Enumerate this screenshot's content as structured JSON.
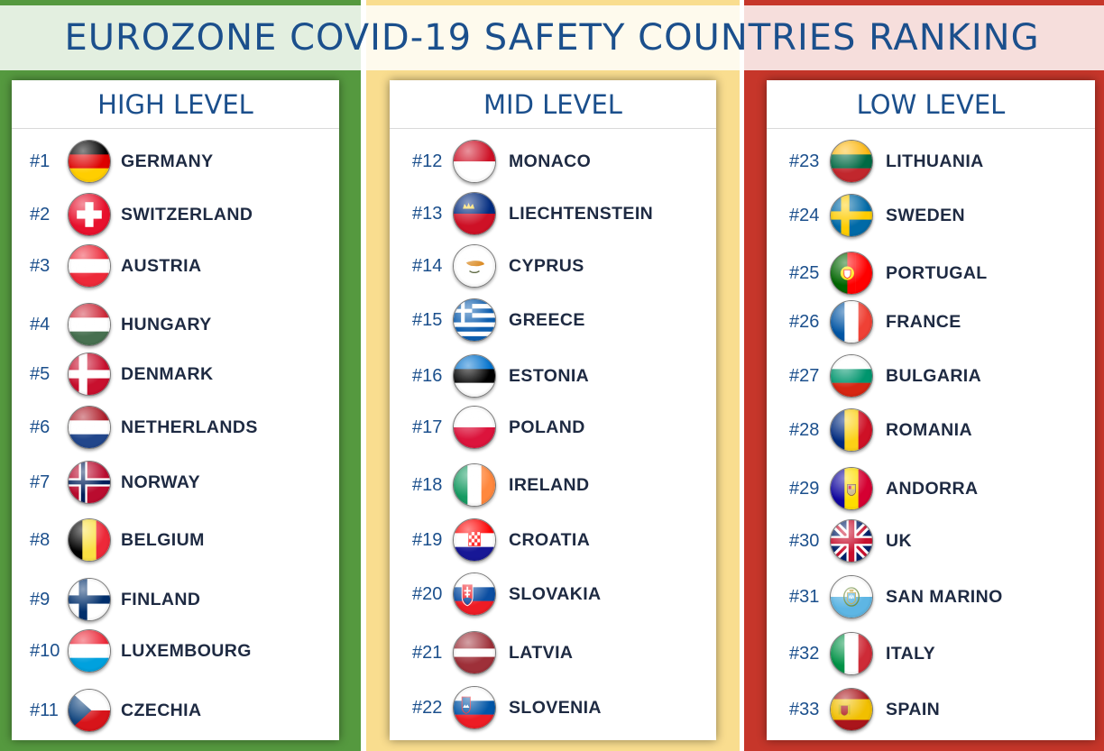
{
  "title": "EUROZONE COVID-19 SAFETY COUNTRIES RANKING",
  "colors": {
    "high": "#55993f",
    "mid": "#f9dd8f",
    "low": "#c6362a",
    "title_text": "#1b4f8c"
  },
  "columns": [
    {
      "heading": "HIGH LEVEL",
      "countries": [
        {
          "rank": "#1",
          "name": "GERMANY",
          "flag": "germany-flag-icon"
        },
        {
          "rank": "#2",
          "name": "SWITZERLAND",
          "flag": "switzerland-flag-icon"
        },
        {
          "rank": "#3",
          "name": "AUSTRIA",
          "flag": "austria-flag-icon"
        },
        {
          "rank": "#4",
          "name": "HUNGARY",
          "flag": "hungary-flag-icon"
        },
        {
          "rank": "#5",
          "name": "DENMARK",
          "flag": "denmark-flag-icon"
        },
        {
          "rank": "#6",
          "name": "NETHERLANDS",
          "flag": "netherlands-flag-icon"
        },
        {
          "rank": "#7",
          "name": "NORWAY",
          "flag": "norway-flag-icon"
        },
        {
          "rank": "#8",
          "name": "BELGIUM",
          "flag": "belgium-flag-icon"
        },
        {
          "rank": "#9",
          "name": "FINLAND",
          "flag": "finland-flag-icon"
        },
        {
          "rank": "#10",
          "name": "LUXEMBOURG",
          "flag": "luxembourg-flag-icon"
        },
        {
          "rank": "#11",
          "name": "CZECHIA",
          "flag": "czechia-flag-icon"
        }
      ]
    },
    {
      "heading": "MID LEVEL",
      "countries": [
        {
          "rank": "#12",
          "name": "MONACO",
          "flag": "monaco-flag-icon"
        },
        {
          "rank": "#13",
          "name": "LIECHTENSTEIN",
          "flag": "liechtenstein-flag-icon"
        },
        {
          "rank": "#14",
          "name": "CYPRUS",
          "flag": "cyprus-flag-icon"
        },
        {
          "rank": "#15",
          "name": "GREECE",
          "flag": "greece-flag-icon"
        },
        {
          "rank": "#16",
          "name": "ESTONIA",
          "flag": "estonia-flag-icon"
        },
        {
          "rank": "#17",
          "name": "POLAND",
          "flag": "poland-flag-icon"
        },
        {
          "rank": "#18",
          "name": "IRELAND",
          "flag": "ireland-flag-icon"
        },
        {
          "rank": "#19",
          "name": "CROATIA",
          "flag": "croatia-flag-icon"
        },
        {
          "rank": "#20",
          "name": "SLOVAKIA",
          "flag": "slovakia-flag-icon"
        },
        {
          "rank": "#21",
          "name": "LATVIA",
          "flag": "latvia-flag-icon"
        },
        {
          "rank": "#22",
          "name": "SLOVENIA",
          "flag": "slovenia-flag-icon"
        }
      ]
    },
    {
      "heading": "LOW LEVEL",
      "countries": [
        {
          "rank": "#23",
          "name": "LITHUANIA",
          "flag": "lithuania-flag-icon"
        },
        {
          "rank": "#24",
          "name": "SWEDEN",
          "flag": "sweden-flag-icon"
        },
        {
          "rank": "#25",
          "name": "PORTUGAL",
          "flag": "portugal-flag-icon"
        },
        {
          "rank": "#26",
          "name": "FRANCE",
          "flag": "france-flag-icon"
        },
        {
          "rank": "#27",
          "name": "BULGARIA",
          "flag": "bulgaria-flag-icon"
        },
        {
          "rank": "#28",
          "name": "ROMANIA",
          "flag": "romania-flag-icon"
        },
        {
          "rank": "#29",
          "name": "ANDORRA",
          "flag": "andorra-flag-icon"
        },
        {
          "rank": "#30",
          "name": "UK",
          "flag": "uk-flag-icon"
        },
        {
          "rank": "#31",
          "name": "SAN MARINO",
          "flag": "san-marino-flag-icon"
        },
        {
          "rank": "#32",
          "name": "ITALY",
          "flag": "italy-flag-icon"
        },
        {
          "rank": "#33",
          "name": "SPAIN",
          "flag": "spain-flag-icon"
        }
      ]
    }
  ]
}
